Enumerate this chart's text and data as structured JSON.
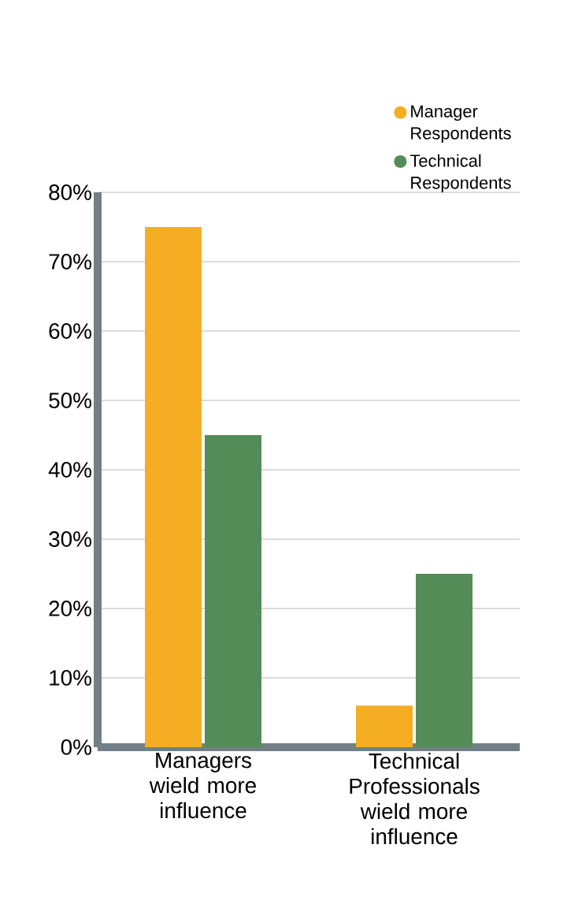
{
  "chart_data": {
    "type": "bar",
    "categories": [
      "Managers wield more influence",
      "Technical Professionals wield more influence"
    ],
    "series": [
      {
        "name": "Manager Respondents",
        "color": "#f5ae23",
        "values": [
          75,
          6
        ]
      },
      {
        "name": "Technical Respondents",
        "color": "#548c57",
        "values": [
          45,
          25
        ]
      }
    ],
    "ylim": [
      0,
      80
    ],
    "yticks": [
      {
        "value": 0,
        "label": "0%"
      },
      {
        "value": 10,
        "label": "10%"
      },
      {
        "value": 20,
        "label": "20%"
      },
      {
        "value": 30,
        "label": "30%"
      },
      {
        "value": 40,
        "label": "40%"
      },
      {
        "value": 50,
        "label": "50%"
      },
      {
        "value": 60,
        "label": "60%"
      },
      {
        "value": 70,
        "label": "70%"
      },
      {
        "value": 80,
        "label": "80%"
      }
    ],
    "grid": "y",
    "legend": "top right"
  }
}
